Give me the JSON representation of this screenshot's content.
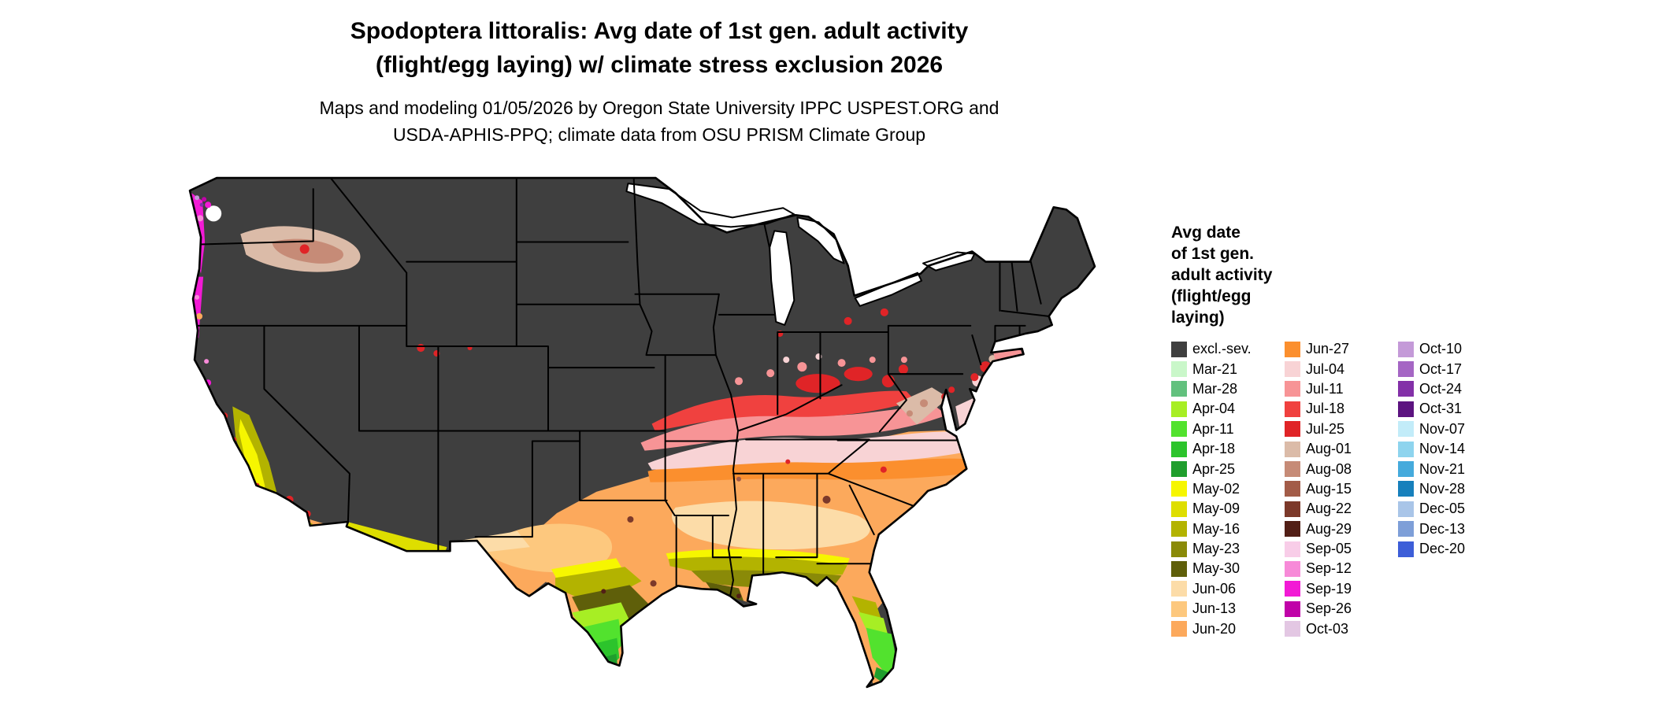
{
  "title": {
    "line1": "Spodoptera littoralis: Avg date of 1st gen. adult activity",
    "line2": "(flight/egg laying) w/ climate stress exclusion 2026"
  },
  "subtitle": {
    "line1": "Maps and modeling 01/05/2026 by Oregon State University IPPC USPEST.ORG and",
    "line2": "USDA-APHIS-PPQ; climate data from OSU PRISM Climate Group"
  },
  "legend": {
    "title_lines": [
      "Avg date",
      "of 1st gen.",
      "adult activity",
      "(flight/egg",
      "laying)"
    ],
    "columns": [
      [
        "excl.-sev.",
        "Mar-21",
        "Mar-28",
        "Apr-04",
        "Apr-11",
        "Apr-18",
        "Apr-25",
        "May-02",
        "May-09",
        "May-16",
        "May-23",
        "May-30",
        "Jun-06",
        "Jun-13",
        "Jun-20"
      ],
      [
        "Jun-27",
        "Jul-04",
        "Jul-11",
        "Jul-18",
        "Jul-25",
        "Aug-01",
        "Aug-08",
        "Aug-15",
        "Aug-22",
        "Aug-29",
        "Sep-05",
        "Sep-12",
        "Sep-19",
        "Sep-26",
        "Oct-03"
      ],
      [
        "Oct-10",
        "Oct-17",
        "Oct-24",
        "Oct-31",
        "Nov-07",
        "Nov-14",
        "Nov-21",
        "Nov-28",
        "Dec-05",
        "Dec-13",
        "Dec-20"
      ]
    ]
  },
  "palette": {
    "excl.-sev.": "#3f3f3f",
    "Mar-21": "#c9f7c9",
    "Mar-28": "#62c17e",
    "Apr-04": "#a7ee24",
    "Apr-11": "#52e22e",
    "Apr-18": "#2cc42c",
    "Apr-25": "#1f9e2d",
    "May-02": "#f6f600",
    "May-09": "#dede00",
    "May-16": "#b3b300",
    "May-23": "#8a8a08",
    "May-30": "#5f5f0a",
    "Jun-06": "#fcdca8",
    "Jun-13": "#fdc87e",
    "Jun-20": "#fca95c",
    "Jun-27": "#fb8f2e",
    "Jul-04": "#f8d3d5",
    "Jul-11": "#f79496",
    "Jul-18": "#f0413f",
    "Jul-25": "#e02427",
    "Aug-01": "#dbbba8",
    "Aug-08": "#c68b77",
    "Aug-15": "#a35c48",
    "Aug-22": "#7c392a",
    "Aug-29": "#521f16",
    "Sep-05": "#f8cde8",
    "Sep-12": "#f78ad8",
    "Sep-19": "#f21ad5",
    "Sep-26": "#c003a8",
    "Oct-03": "#e3c7e3",
    "Oct-10": "#c49ad8",
    "Oct-17": "#a566c4",
    "Oct-24": "#8330a8",
    "Oct-31": "#5c1380",
    "Nov-07": "#c2ecf9",
    "Nov-14": "#8ed4ee",
    "Nov-21": "#45aadc",
    "Nov-28": "#1780bc",
    "Dec-05": "#a9c5e8",
    "Dec-13": "#7e9fd8",
    "Dec-20": "#3d5ed8"
  }
}
